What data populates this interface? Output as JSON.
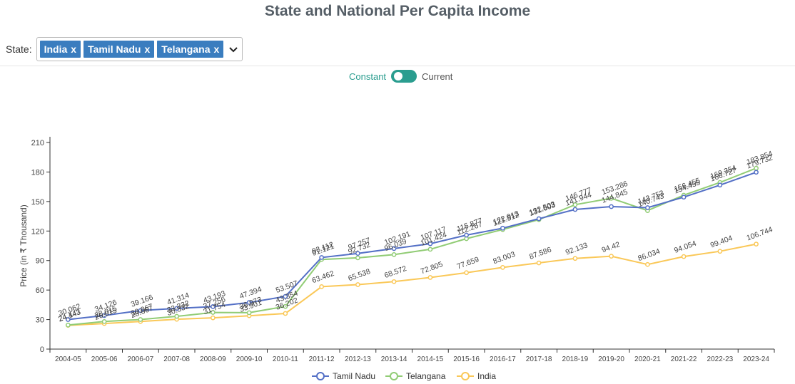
{
  "page": {
    "title": "State and National Per Capita Income"
  },
  "filter": {
    "label": "State:",
    "chips": [
      "India",
      "Tamil Nadu",
      "Telangana"
    ],
    "chip_remove": "x",
    "dropdown_icon": "chevron-down-icon"
  },
  "toggle": {
    "left_label": "Constant",
    "right_label": "Current",
    "selected": "Constant"
  },
  "colors": {
    "Tamil Nadu": "#5470c6",
    "Telangana": "#91cc75",
    "India": "#fac858"
  },
  "chart_data": {
    "type": "line",
    "title": "",
    "xlabel": "",
    "ylabel": "Price (in ₹ Thousand)",
    "ylim": [
      0,
      210
    ],
    "yticks": [
      0,
      30,
      60,
      90,
      120,
      150,
      180,
      210
    ],
    "grid": false,
    "legend": "bottom-center",
    "categories": [
      "2004-05",
      "2005-06",
      "2006-07",
      "2007-08",
      "2008-09",
      "2009-10",
      "2010-11",
      "2011-12",
      "2012-13",
      "2013-14",
      "2014-15",
      "2015-16",
      "2016-17",
      "2017-18",
      "2018-19",
      "2019-20",
      "2020-21",
      "2021-22",
      "2022-23",
      "2023-24"
    ],
    "series": [
      {
        "name": "Tamil Nadu",
        "values": [
          30.062,
          34.126,
          39.166,
          41.314,
          43.193,
          47.394,
          53.507,
          93.112,
          97.257,
          102.191,
          107.117,
          115.877,
          122.913,
          132.503,
          141.944,
          144.845,
          143.753,
          154.455,
          166.727,
          179.732
        ],
        "labels": [
          "30.062",
          "34.126",
          "39.166",
          "41.314",
          "43.193",
          "47.394",
          "53.507",
          "93.112",
          "97.257",
          "102.191",
          "107.117",
          "115.877",
          "122.913",
          "132.503",
          "141.944",
          "144.845",
          "143.753",
          "154.455",
          "166.727",
          "179.732"
        ]
      },
      {
        "name": "Telangana",
        "values": [
          24.443,
          28.015,
          30.067,
          33.332,
          37.256,
          36.973,
          43.354,
          91.121,
          92.732,
          96.039,
          101.424,
          112.267,
          121.512,
          131.603,
          146.777,
          153.286,
          140.743,
          156.455,
          169.354,
          183.854
        ],
        "labels": [
          "24.443",
          "28.015",
          "30.067",
          "33.332",
          "37.256",
          "36.973",
          "43.354",
          "91.121",
          "92.732",
          "96.039",
          "101.424",
          "112.267",
          "121.512",
          "131.603",
          "146.777",
          "153.286",
          "140.743",
          "156.455",
          "169.354",
          "183.854"
        ]
      },
      {
        "name": "India",
        "values": [
          24.143,
          26.015,
          28.067,
          30.332,
          31.754,
          33.901,
          36.202,
          63.462,
          65.538,
          68.572,
          72.805,
          77.659,
          83.003,
          87.586,
          92.133,
          94.42,
          86.034,
          94.054,
          99.404,
          106.744
        ],
        "labels": [
          "24.143",
          "26.015",
          "28.067",
          "30.332",
          "31.754",
          "33.901",
          "36.202",
          "63.462",
          "65.538",
          "68.572",
          "72.805",
          "77.659",
          "83.003",
          "87.586",
          "92.133",
          "94.42",
          "86.034",
          "94.054",
          "99.404",
          "106.744"
        ]
      }
    ]
  }
}
